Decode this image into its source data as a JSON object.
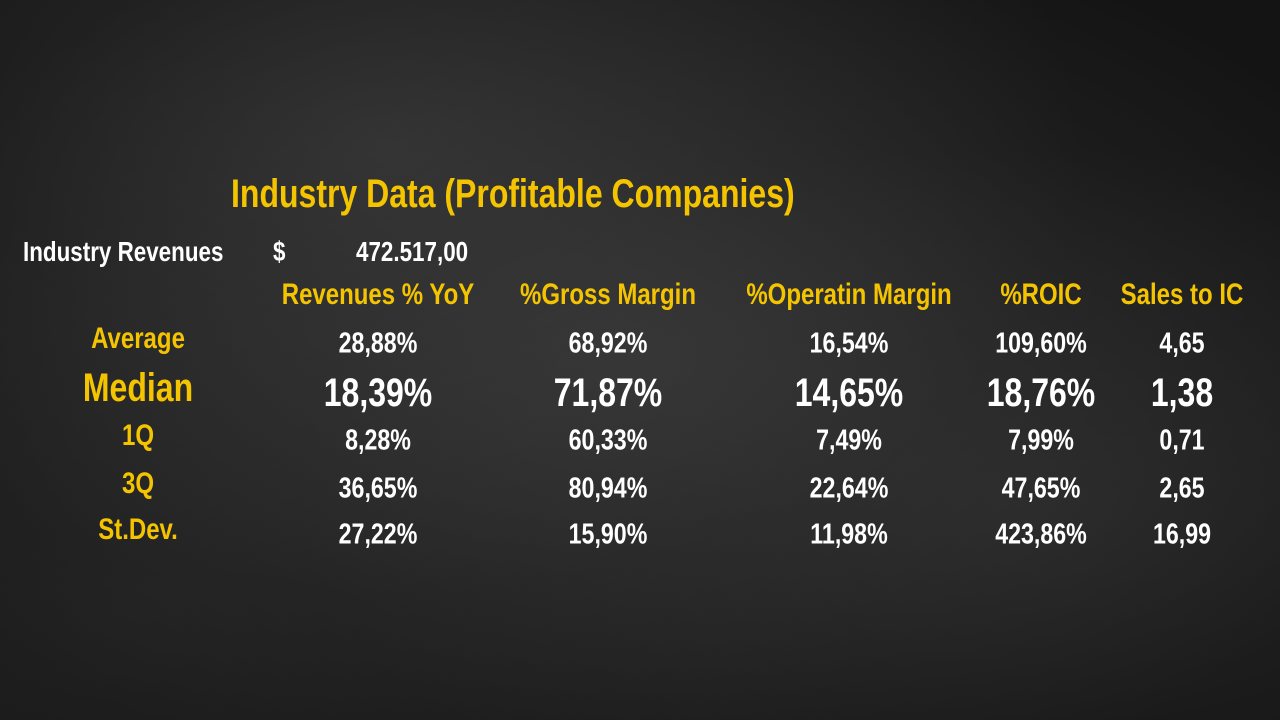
{
  "title": "Industry Data (Profitable Companies)",
  "revenues": {
    "label": "Industry Revenues",
    "currency": "$",
    "amount": "472.517,00"
  },
  "table": {
    "columns": [
      "Revenues % YoY",
      "%Gross Margin",
      "%Operatin Margin",
      "%ROIC",
      "Sales to IC"
    ],
    "rows": [
      {
        "label": "Average",
        "cells": [
          "28,88%",
          "68,92%",
          "16,54%",
          "109,60%",
          "4,65"
        ]
      },
      {
        "label": "Median",
        "cells": [
          "18,39%",
          "71,87%",
          "14,65%",
          "18,76%",
          "1,38"
        ]
      },
      {
        "label": "1Q",
        "cells": [
          "8,28%",
          "60,33%",
          "7,49%",
          "7,99%",
          "0,71"
        ]
      },
      {
        "label": "3Q",
        "cells": [
          "36,65%",
          "80,94%",
          "22,64%",
          "47,65%",
          "2,65"
        ]
      },
      {
        "label": "St.Dev.",
        "cells": [
          "27,22%",
          "15,90%",
          "11,98%",
          "423,86%",
          "16,99"
        ]
      }
    ]
  }
}
